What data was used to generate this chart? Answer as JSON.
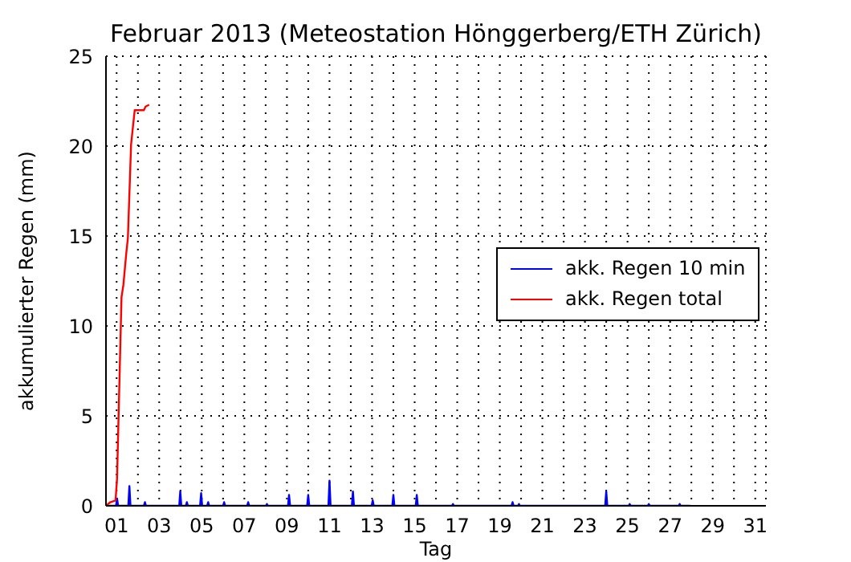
{
  "chart_data": {
    "type": "line",
    "title": "Februar 2013  (Meteostation Hönggerberg/ETH Zürich)",
    "xlabel": "Tag",
    "ylabel": "akkumulierter Regen (mm)",
    "xlim": [
      0.5,
      31.5
    ],
    "ylim": [
      0,
      25
    ],
    "xticks": [
      {
        "value": 1,
        "label": "01"
      },
      {
        "value": 2,
        "label": null
      },
      {
        "value": 3,
        "label": "03"
      },
      {
        "value": 4,
        "label": null
      },
      {
        "value": 5,
        "label": "05"
      },
      {
        "value": 6,
        "label": null
      },
      {
        "value": 7,
        "label": "07"
      },
      {
        "value": 8,
        "label": null
      },
      {
        "value": 9,
        "label": "09"
      },
      {
        "value": 10,
        "label": null
      },
      {
        "value": 11,
        "label": "11"
      },
      {
        "value": 12,
        "label": null
      },
      {
        "value": 13,
        "label": "13"
      },
      {
        "value": 14,
        "label": null
      },
      {
        "value": 15,
        "label": "15"
      },
      {
        "value": 16,
        "label": null
      },
      {
        "value": 17,
        "label": "17"
      },
      {
        "value": 18,
        "label": null
      },
      {
        "value": 19,
        "label": "19"
      },
      {
        "value": 20,
        "label": null
      },
      {
        "value": 21,
        "label": "21"
      },
      {
        "value": 22,
        "label": null
      },
      {
        "value": 23,
        "label": "23"
      },
      {
        "value": 24,
        "label": null
      },
      {
        "value": 25,
        "label": "25"
      },
      {
        "value": 26,
        "label": null
      },
      {
        "value": 27,
        "label": "27"
      },
      {
        "value": 28,
        "label": null
      },
      {
        "value": 29,
        "label": "29"
      },
      {
        "value": 30,
        "label": null
      },
      {
        "value": 31,
        "label": "31"
      }
    ],
    "yticks": [
      0,
      5,
      10,
      15,
      20,
      25
    ],
    "grid": true,
    "legend": "right",
    "marker": "none",
    "line_style": "solid",
    "series": [
      {
        "name": "akk. Regen 10 min",
        "color": "#0000ff",
        "x": [
          0.5,
          0.97,
          1.02,
          1.07,
          1.55,
          1.6,
          1.65,
          2.28,
          2.33,
          2.38,
          3.94,
          3.99,
          4.04,
          4.25,
          4.3,
          4.35,
          4.92,
          4.97,
          5.02,
          5.25,
          5.3,
          5.35,
          6.0,
          6.05,
          6.1,
          7.13,
          7.18,
          7.23,
          8.01,
          8.06,
          8.11,
          9.05,
          9.1,
          9.15,
          9.95,
          10.0,
          10.05,
          10.95,
          11.0,
          11.05,
          12.05,
          12.1,
          12.15,
          12.98,
          13.03,
          13.08,
          13.95,
          14.0,
          14.05,
          15.05,
          15.1,
          15.15,
          16.75,
          16.8,
          16.85,
          19.55,
          19.6,
          19.65,
          19.85,
          19.9,
          19.95,
          23.95,
          24.0,
          24.05,
          25.05,
          25.1,
          25.15,
          25.95,
          26.0,
          26.05,
          27.4,
          27.45,
          27.5,
          27.95
        ],
        "values": [
          0,
          0,
          0.4,
          0,
          0,
          1.1,
          0,
          0,
          0.2,
          0,
          0,
          0.8,
          0,
          0,
          0.2,
          0,
          0,
          0.7,
          0,
          0,
          0.2,
          0,
          0,
          0.2,
          0,
          0,
          0.2,
          0,
          0,
          0.1,
          0,
          0,
          0.6,
          0,
          0,
          0.6,
          0,
          0,
          1.4,
          0,
          0,
          0.8,
          0,
          0,
          0.3,
          0,
          0,
          0.6,
          0,
          0,
          0.6,
          0,
          0,
          0.1,
          0,
          0,
          0.2,
          0,
          0,
          0.1,
          0,
          0,
          0.8,
          0,
          0,
          0.1,
          0,
          0,
          0.1,
          0,
          0,
          0.1,
          0,
          0
        ]
      },
      {
        "name": "akk. Regen total",
        "color": "#ff0000",
        "x": [
          0.5,
          0.7,
          0.95,
          1.02,
          1.23,
          1.32,
          1.45,
          1.53,
          1.68,
          1.85,
          2.28,
          2.36,
          2.53
        ],
        "values": [
          0,
          0.2,
          0.3,
          1.5,
          11.6,
          12.3,
          14.0,
          14.9,
          20.1,
          22.0,
          22.0,
          22.2,
          22.3
        ]
      }
    ]
  }
}
